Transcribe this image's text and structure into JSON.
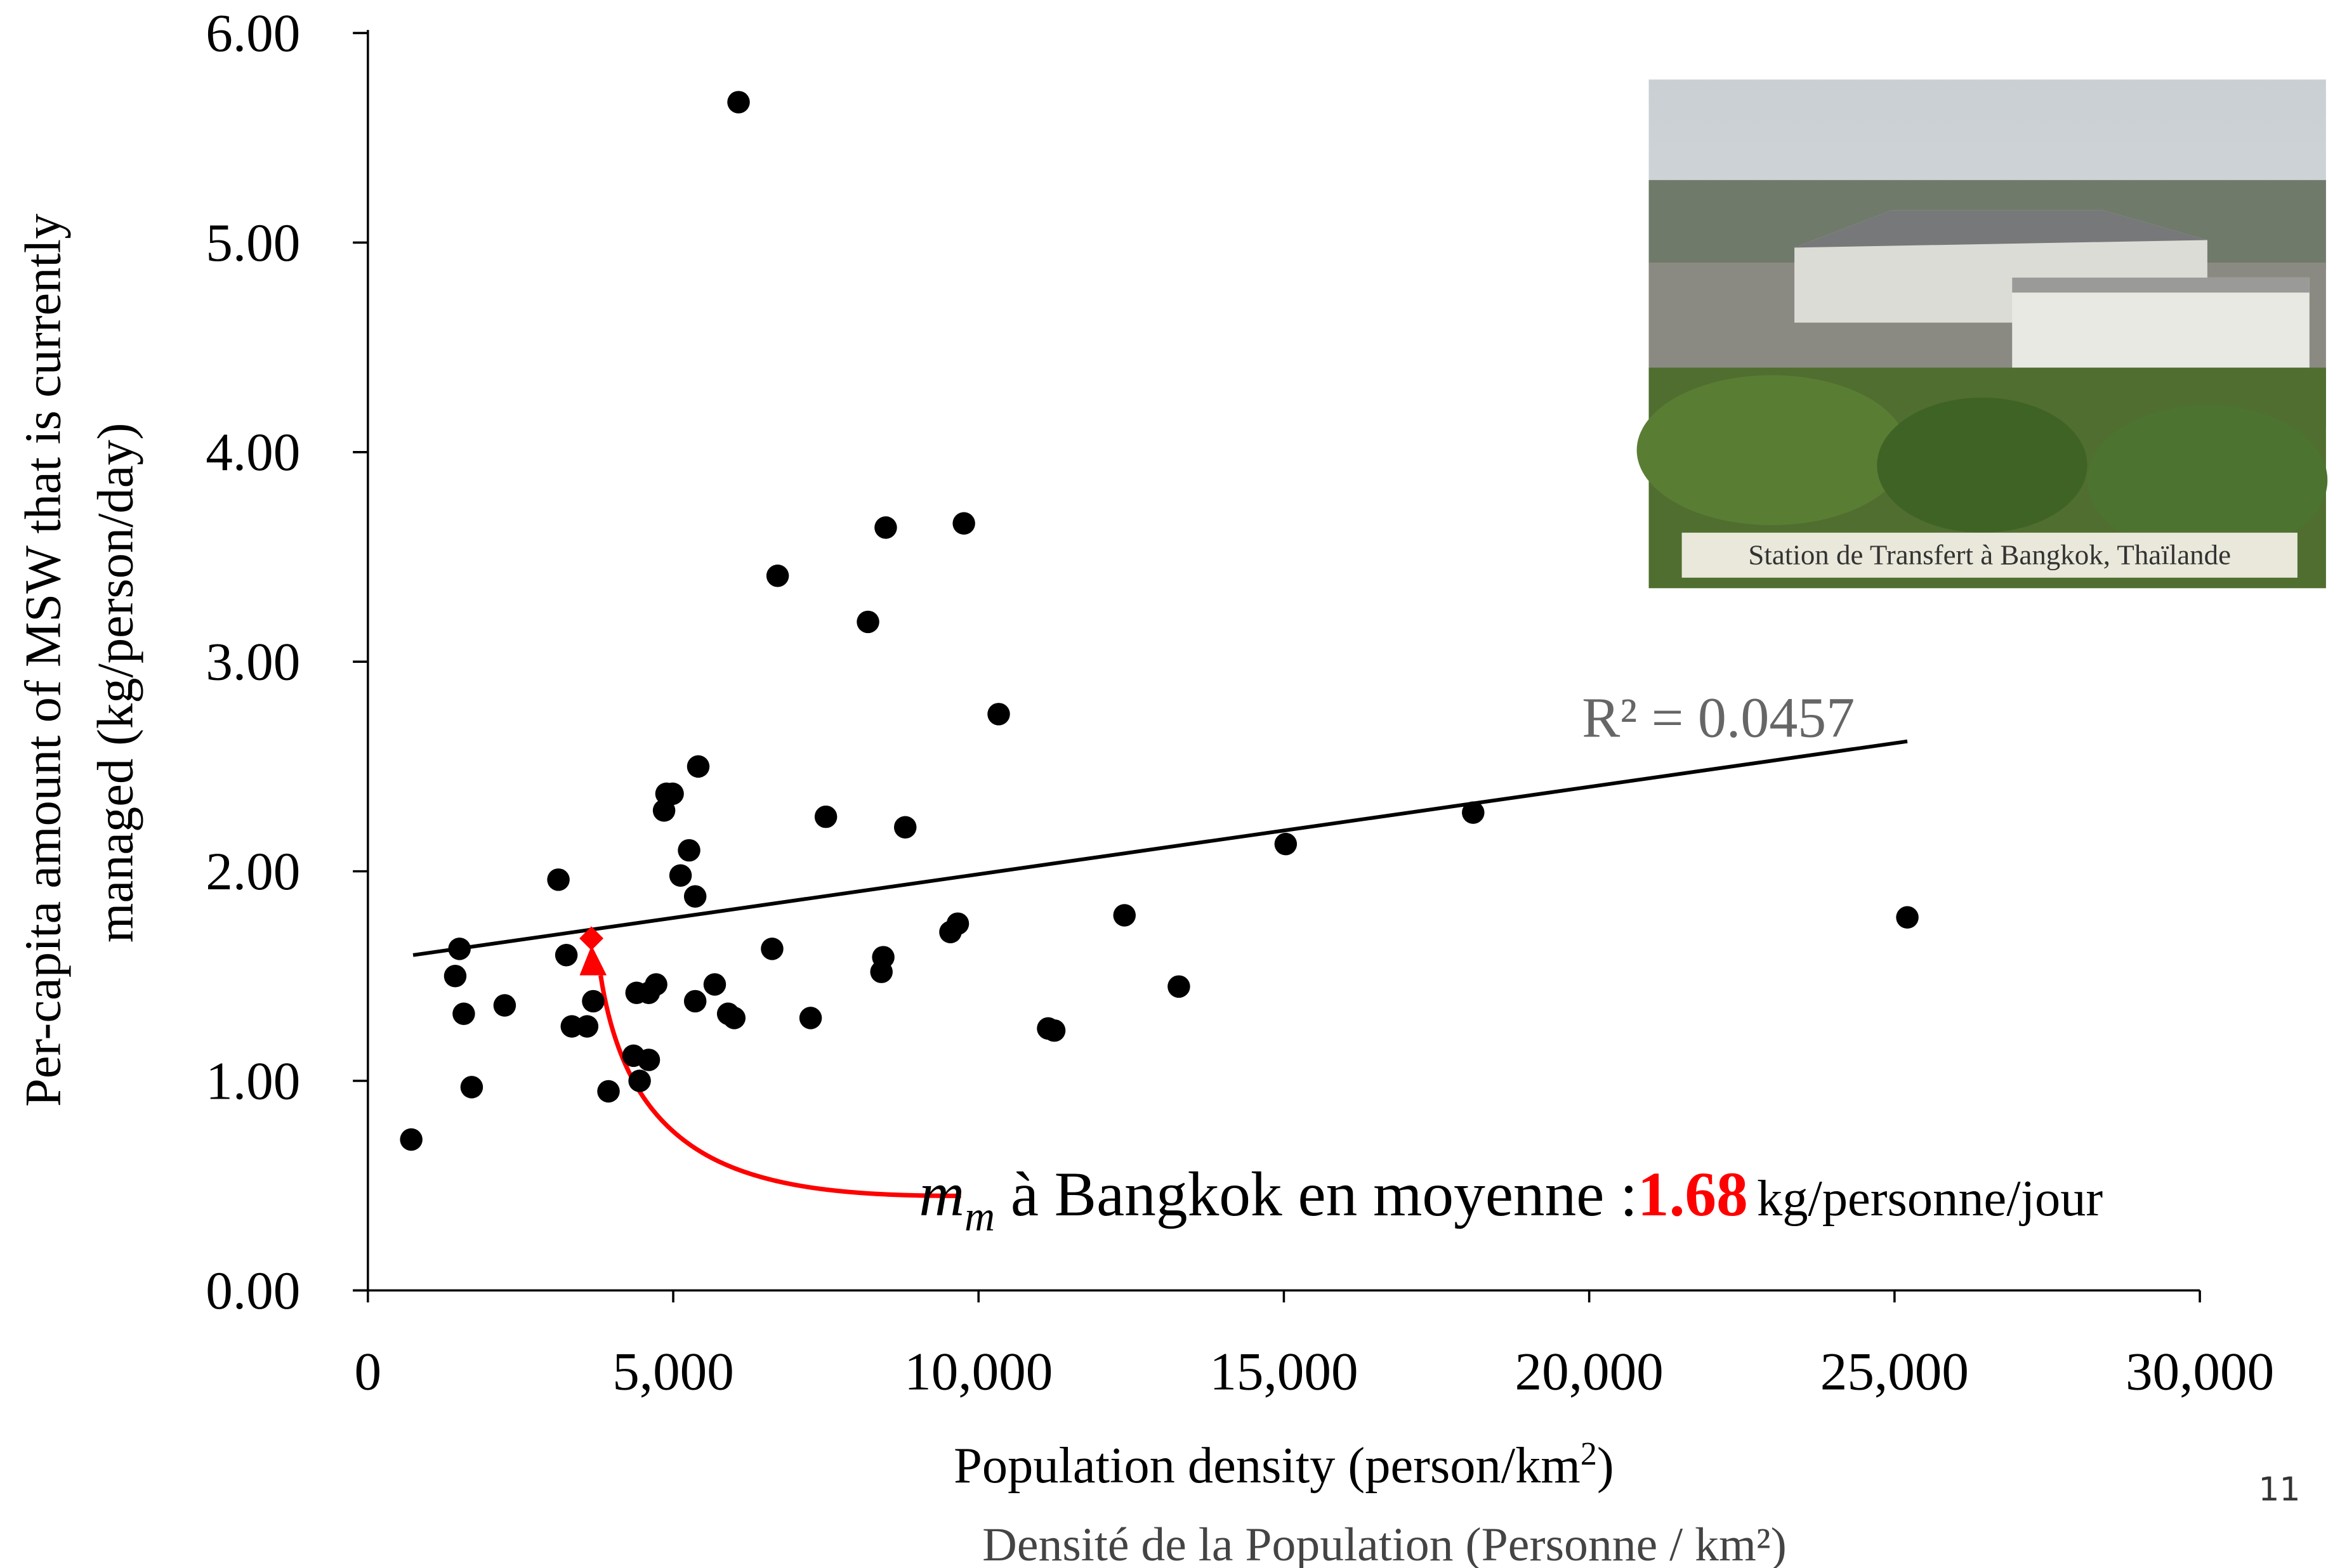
{
  "chart_data": {
    "type": "scatter",
    "y_label_lines": [
      "Per-capita amount of MSW that is currently",
      "managed (kg/person/day)"
    ],
    "x_label": "Population density (person/km",
    "x_label_sup": "2",
    "x_label_end": ")",
    "x_label_fr": "Densité de la Population (Personne / km²)",
    "page_number": "11",
    "photo_caption": "Station de Transfert à Bangkok, Thaïlande",
    "color": "#000000",
    "x": [
      710,
      1500,
      1430,
      1570,
      1700,
      2240,
      3120,
      3250,
      3340,
      3590,
      3690,
      3940,
      4350,
      4400,
      4450,
      4600,
      4600,
      4720,
      4850,
      4890,
      4990,
      5120,
      5260,
      5410,
      5360,
      5680,
      5360,
      5900,
      6000,
      6070,
      6620,
      6710,
      7250,
      7500,
      8190,
      8440,
      8410,
      8480,
      8800,
      9540,
      9660,
      9760,
      10330,
      11140,
      11240,
      12390,
      13280,
      15030,
      18100,
      25210
    ],
    "y": [
      0.72,
      1.63,
      1.5,
      1.32,
      0.97,
      1.36,
      1.96,
      1.6,
      1.26,
      1.26,
      1.38,
      0.95,
      1.12,
      1.42,
      1.0,
      1.1,
      1.42,
      1.46,
      2.29,
      2.37,
      2.37,
      1.98,
      2.1,
      2.5,
      1.38,
      1.46,
      1.88,
      1.32,
      1.3,
      5.67,
      1.63,
      3.41,
      1.3,
      2.26,
      3.19,
      1.59,
      1.52,
      3.64,
      2.21,
      1.71,
      1.75,
      3.66,
      2.75,
      1.25,
      1.24,
      1.79,
      1.45,
      2.13,
      2.28,
      1.78
    ],
    "trendline": {
      "x": [
        740,
        25210
      ],
      "y": [
        1.6,
        2.62
      ],
      "color": "#000000",
      "label": "R² = 0.0457",
      "label_color": "#666666"
    },
    "bangkok": {
      "x": 3660,
      "y": 1.68,
      "color": "#ff0000"
    },
    "annotation": {
      "symbol": "m",
      "symbol_sub": "m",
      "text": " à Bangkok en moyenne :",
      "unit": "kg/personne/jour"
    },
    "xlim": [
      0,
      30000
    ],
    "xticks": [
      0,
      {
        "value": 5000,
        "label": "5,000"
      },
      {
        "value": 10000,
        "label": "10,000"
      },
      {
        "value": 15000,
        "label": "15,000"
      },
      {
        "value": 20000,
        "label": "20,000"
      },
      {
        "value": 25000,
        "label": "25,000"
      },
      {
        "value": 30000,
        "label": "30,000"
      }
    ],
    "ylim": [
      0,
      6
    ],
    "yticks": [
      {
        "value": 0,
        "label": "0.00"
      },
      {
        "value": 1,
        "label": "1.00"
      },
      {
        "value": 2,
        "label": "2.00"
      },
      {
        "value": 3,
        "label": "3.00"
      },
      {
        "value": 4,
        "label": "4.00"
      },
      {
        "value": 5,
        "label": "5.00"
      },
      {
        "value": 6,
        "label": "6.00"
      }
    ]
  }
}
